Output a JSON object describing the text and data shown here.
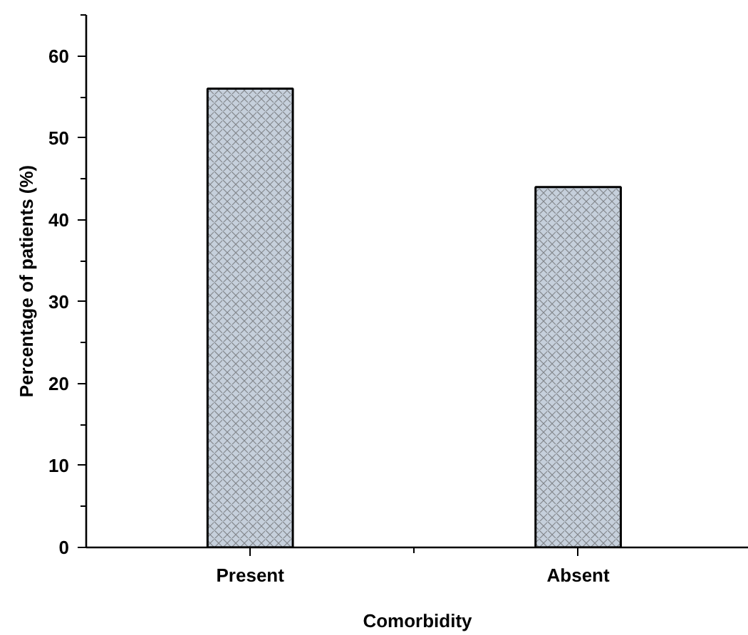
{
  "chart_data": {
    "type": "bar",
    "xlabel": "Comorbidity",
    "ylabel": "Percentage of patients (%)",
    "categories": [
      "Present",
      "Absent"
    ],
    "values": [
      56,
      44
    ],
    "color": "#c6d0dc",
    "ylim": [
      0,
      65
    ],
    "yticks": [
      0,
      10,
      20,
      30,
      40,
      50,
      60
    ],
    "grid": false
  }
}
